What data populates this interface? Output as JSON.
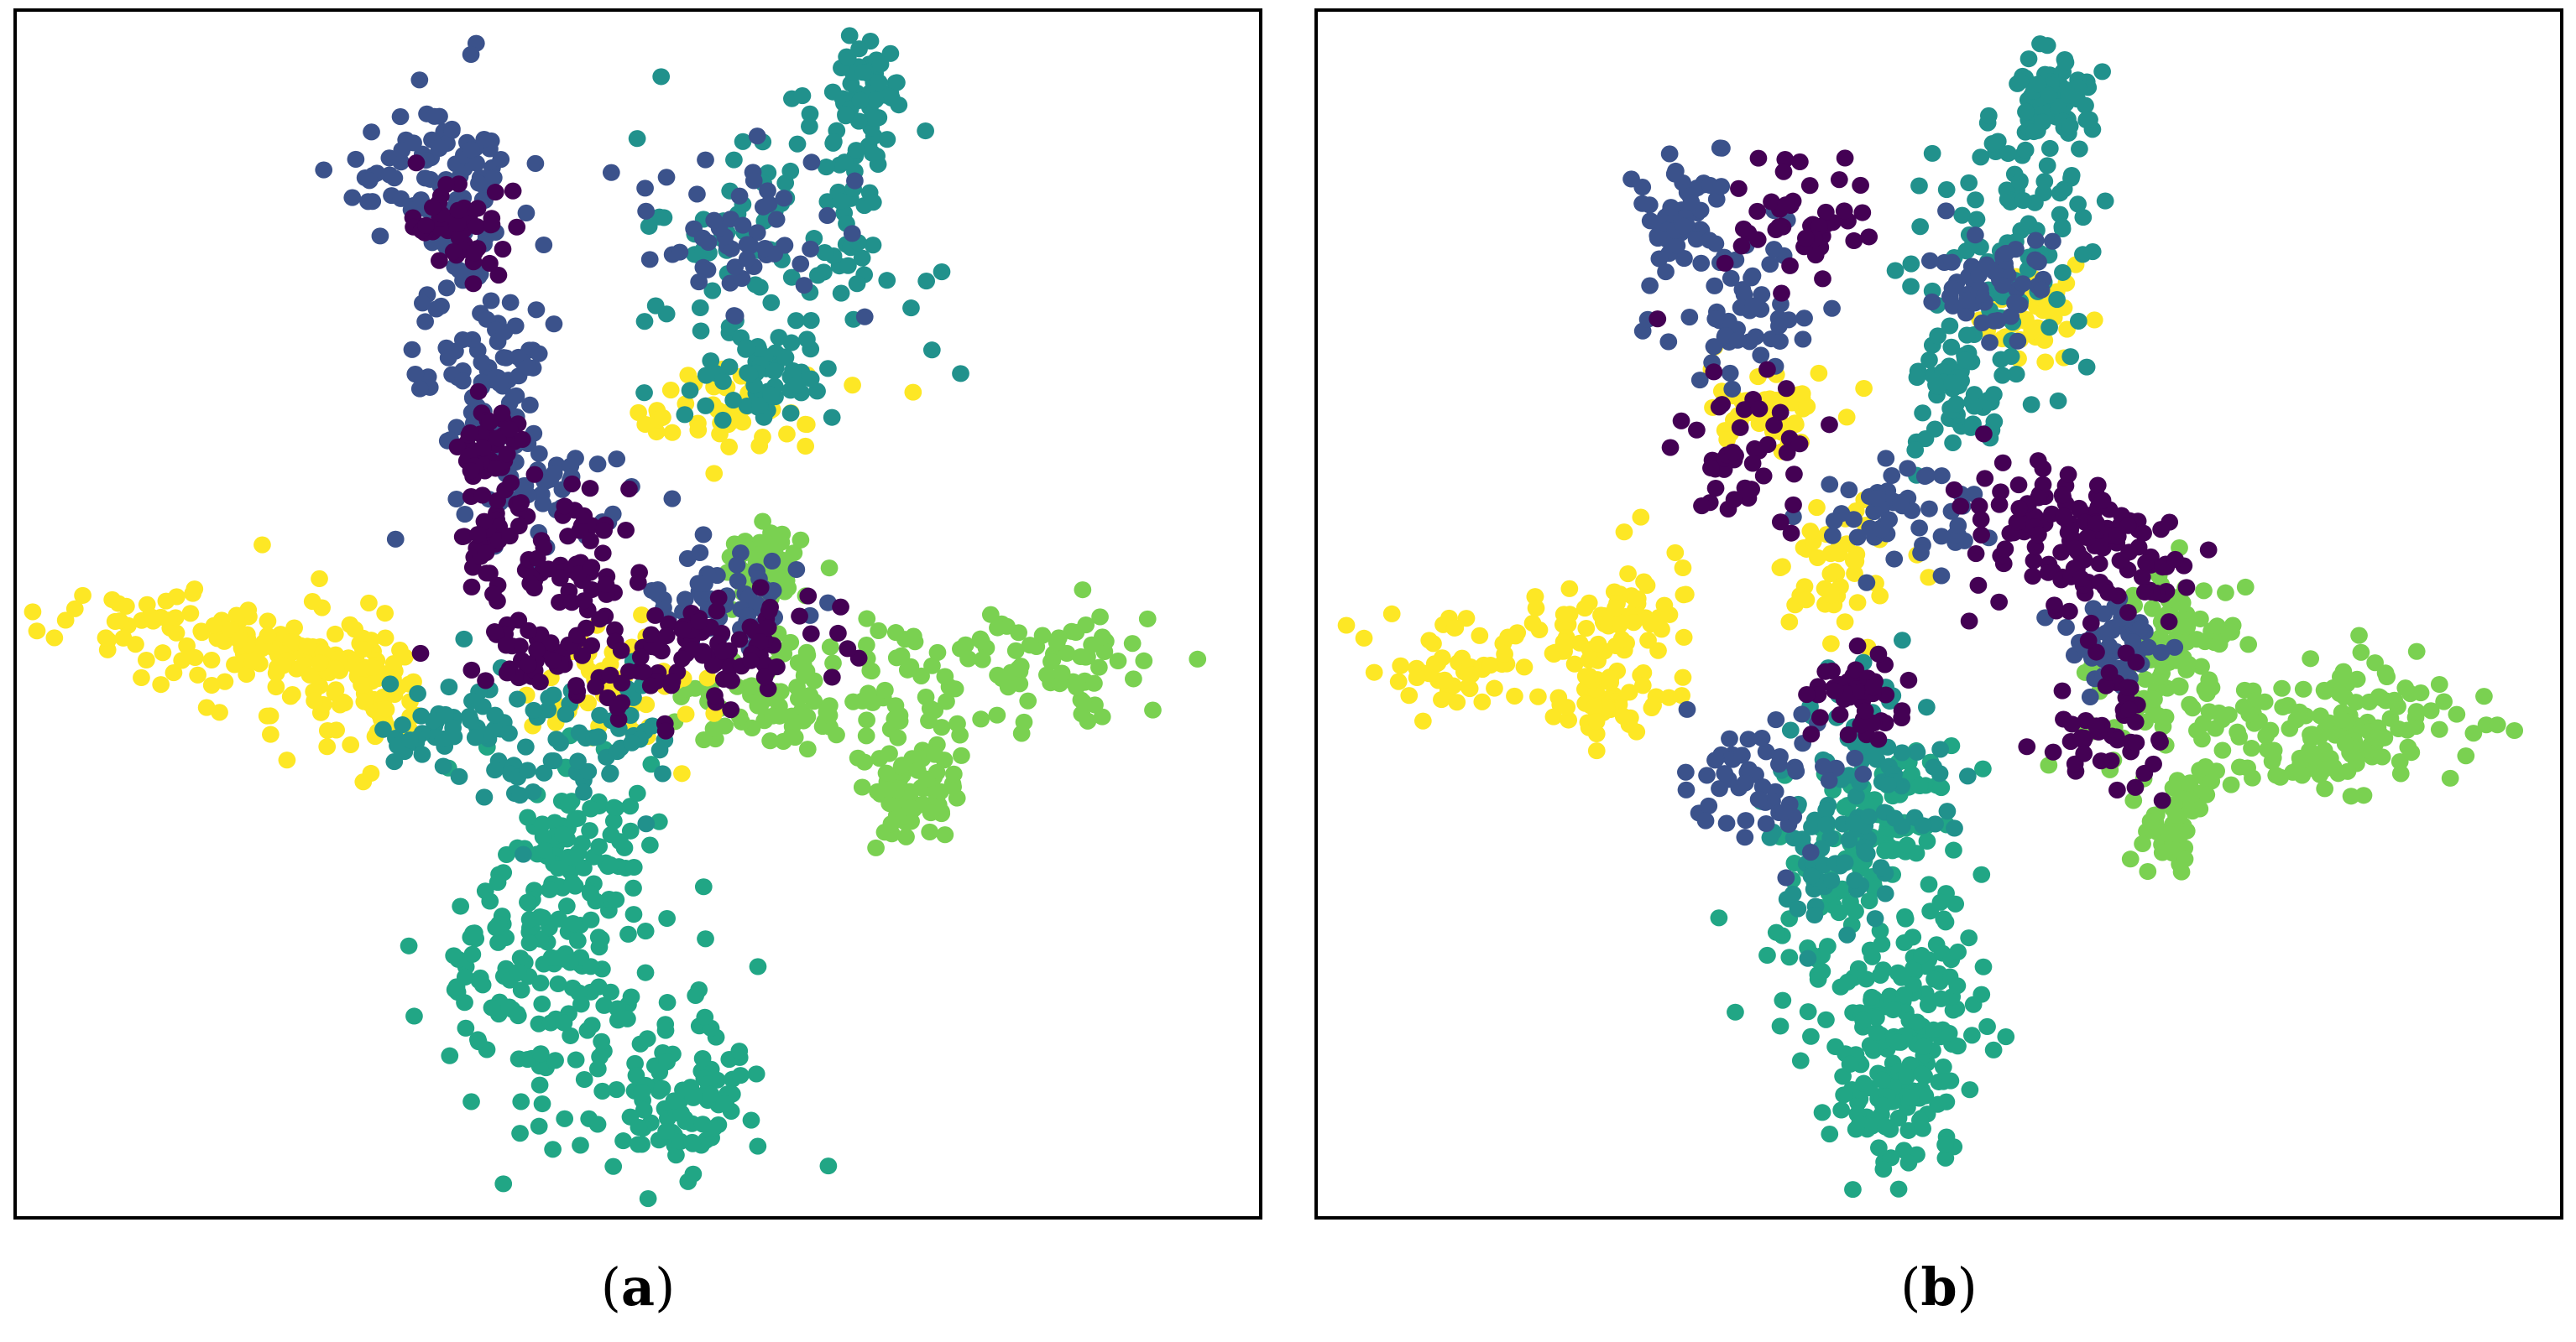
{
  "chart_data": [
    {
      "type": "scatter",
      "panel_label": "a",
      "title": "",
      "xlabel": "",
      "ylabel": "",
      "axes_visible": false,
      "grid": false,
      "legend": "none",
      "xlim": [
        0,
        100
      ],
      "ylim": [
        0,
        100
      ],
      "point_count_per_series": 320,
      "series": [
        {
          "color": "#440154",
          "clusters": [
            [
              45,
              55,
              2.5,
              2.5
            ],
            [
              39,
              56,
              2.0,
              3.0
            ],
            [
              60,
              48,
              3.0,
              2.0
            ],
            [
              43,
              46,
              3.0,
              2.0
            ],
            [
              38,
              64,
              1.5,
              1.5
            ],
            [
              52,
              46,
              3.0,
              2.5
            ],
            [
              36,
              82,
              2.0,
              2.0
            ]
          ]
        },
        {
          "color": "#3b528b",
          "clusters": [
            [
              36,
              82,
              3.0,
              6.0
            ],
            [
              33,
              87,
              3.5,
              2.5
            ],
            [
              38,
              70,
              3.0,
              3.0
            ],
            [
              42,
              60,
              4.0,
              3.0
            ],
            [
              57,
              51,
              3.0,
              2.0
            ],
            [
              58,
              82,
              3.5,
              3.5
            ]
          ]
        },
        {
          "color": "#21918c",
          "clusters": [
            [
              67,
              84,
              4.0,
              7.0
            ],
            [
              59,
              80,
              4.5,
              5.0
            ],
            [
              68,
              92,
              1.5,
              3.0
            ],
            [
              46,
              39,
              4.0,
              3.0
            ],
            [
              36,
              40,
              3.5,
              2.5
            ],
            [
              60,
              69,
              3.0,
              2.0
            ]
          ]
        },
        {
          "color": "#21a685",
          "clusters": [
            [
              45,
              18,
              6.0,
              8.0
            ],
            [
              54,
              9,
              3.0,
              3.0
            ],
            [
              46,
              30,
              3.0,
              5.0
            ],
            [
              41,
              22,
              4.0,
              4.0
            ]
          ]
        },
        {
          "color": "#7ad151",
          "clusters": [
            [
              73,
              44,
              7.0,
              3.0
            ],
            [
              84,
              46,
              4.5,
              2.0
            ],
            [
              61,
              43,
              3.0,
              2.5
            ],
            [
              72,
              35,
              2.0,
              2.0
            ],
            [
              60,
              54,
              1.5,
              1.5
            ]
          ]
        },
        {
          "color": "#fde725",
          "clusters": [
            [
              12,
              49,
              5.0,
              2.0
            ],
            [
              20,
              47,
              3.0,
              3.0
            ],
            [
              26,
              46,
              2.5,
              2.0
            ],
            [
              29,
              43,
              2.0,
              2.5
            ],
            [
              48,
              44,
              4.0,
              2.5
            ],
            [
              57,
              67,
              4.0,
              2.0
            ]
          ]
        }
      ]
    },
    {
      "type": "scatter",
      "panel_label": "b",
      "title": "",
      "xlabel": "",
      "ylabel": "",
      "axes_visible": false,
      "grid": false,
      "legend": "none",
      "xlim": [
        0,
        100
      ],
      "ylim": [
        0,
        100
      ],
      "point_count_per_series": 320,
      "series": [
        {
          "color": "#440154",
          "clusters": [
            [
              34,
              63,
              3.0,
              4.0
            ],
            [
              38,
              83,
              3.5,
              2.5
            ],
            [
              62,
              56,
              2.0,
              2.0
            ],
            [
              65,
              53,
              3.0,
              2.5
            ],
            [
              57,
              58,
              2.5,
              3.0
            ],
            [
              64,
              41,
              2.5,
              2.5
            ],
            [
              44,
              43,
              2.0,
              2.0
            ]
          ]
        },
        {
          "color": "#3b528b",
          "clusters": [
            [
              29,
              83,
              2.0,
              3.0
            ],
            [
              34,
              74,
              3.0,
              4.0
            ],
            [
              47,
              58,
              3.0,
              2.0
            ],
            [
              36,
              36,
              3.0,
              3.0
            ],
            [
              64,
              47,
              2.0,
              2.0
            ],
            [
              54,
              78,
              2.5,
              2.5
            ]
          ]
        },
        {
          "color": "#21918c",
          "clusters": [
            [
              54,
              78,
              4.0,
              6.0
            ],
            [
              58,
              86,
              3.0,
              5.0
            ],
            [
              59,
              93,
              1.5,
              2.0
            ],
            [
              44,
              38,
              3.5,
              4.0
            ],
            [
              42,
              30,
              3.0,
              3.0
            ],
            [
              51,
              68,
              2.5,
              2.5
            ]
          ]
        },
        {
          "color": "#21a685",
          "clusters": [
            [
              44,
              22,
              5.0,
              7.0
            ],
            [
              46,
              10,
              3.0,
              3.0
            ],
            [
              45,
              33,
              3.0,
              3.0
            ],
            [
              48,
              17,
              3.0,
              4.0
            ]
          ]
        },
        {
          "color": "#7ad151",
          "clusters": [
            [
              75,
              41,
              5.0,
              3.0
            ],
            [
              86,
              43,
              4.0,
              2.0
            ],
            [
              67,
              44,
              3.0,
              3.5
            ],
            [
              70,
              49,
              2.0,
              2.0
            ],
            [
              69,
              32,
              1.5,
              2.0
            ],
            [
              83,
              39,
              3.0,
              2.0
            ]
          ]
        },
        {
          "color": "#fde725",
          "clusters": [
            [
              12,
              46,
              4.5,
              2.0
            ],
            [
              20,
              47,
              3.0,
              3.0
            ],
            [
              26,
              50,
              2.0,
              2.5
            ],
            [
              24,
              43,
              2.0,
              1.5
            ],
            [
              36,
              67,
              3.0,
              2.0
            ],
            [
              42,
              54,
              2.5,
              2.5
            ],
            [
              57,
              75,
              2.0,
              2.0
            ]
          ]
        }
      ]
    }
  ],
  "captions": [
    {
      "open": "(",
      "label": "a",
      "close": ")"
    },
    {
      "open": "(",
      "label": "b",
      "close": ")"
    }
  ]
}
